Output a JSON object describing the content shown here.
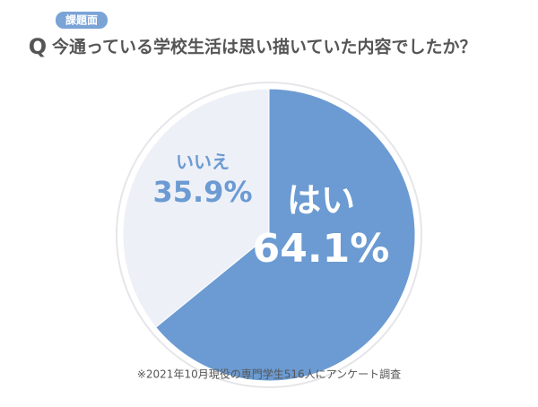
{
  "chart_data": {
    "type": "pie",
    "tag": "課題面",
    "marker": "Q",
    "title": "今通っている学校生活は思い描いていた内容でしたか？",
    "categories": [
      "はい",
      "いいえ"
    ],
    "values": [
      64.1,
      35.9
    ],
    "value_labels": [
      "64.1%",
      "35.9%"
    ],
    "colors": [
      "#6b9bd2",
      "#eef0f8"
    ],
    "footnote": "※2021年10月現役の専門学生516人にアンケート調査"
  }
}
